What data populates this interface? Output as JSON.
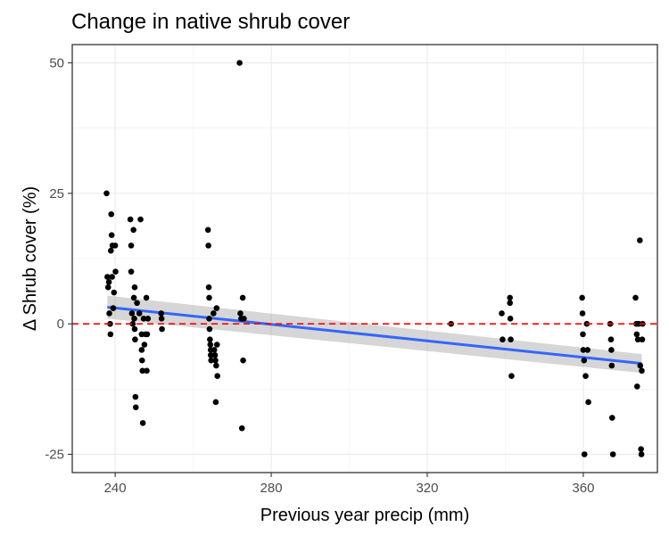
{
  "chart_data": {
    "type": "scatter",
    "title": "Change in native shrub cover",
    "xlabel": "Previous year precip (mm)",
    "ylabel": "Δ Shrub cover (%)",
    "xlim": [
      229,
      379
    ],
    "ylim": [
      -28.5,
      53.5
    ],
    "x_ticks": [
      240,
      280,
      320,
      360
    ],
    "x_tick_labels": [
      "240",
      "280",
      "320",
      "360"
    ],
    "y_ticks": [
      -25,
      0,
      25,
      50
    ],
    "y_tick_labels": [
      "-25",
      "0",
      "25",
      "50"
    ],
    "grid": true,
    "reference_line": {
      "y": 0,
      "style": "dashed",
      "color": "#ff0000"
    },
    "trend": {
      "method": "linear fit with confidence band",
      "x": [
        238,
        375
      ],
      "y": [
        3.2,
        -7.6
      ],
      "ci_lower": [
        1.0,
        -9.4
      ],
      "ci_upper": [
        5.4,
        -5.8
      ],
      "line_color": "#3366ff",
      "band_color": "#999999"
    },
    "point_color": "#000000",
    "points": [
      {
        "x": 237.8,
        "y": 25
      },
      {
        "x": 238.0,
        "y": 9
      },
      {
        "x": 238.2,
        "y": 7
      },
      {
        "x": 238.4,
        "y": 8
      },
      {
        "x": 238.5,
        "y": 2
      },
      {
        "x": 238.7,
        "y": 0
      },
      {
        "x": 238.8,
        "y": -2
      },
      {
        "x": 238.9,
        "y": 14
      },
      {
        "x": 239.0,
        "y": 21
      },
      {
        "x": 239.1,
        "y": 17
      },
      {
        "x": 239.2,
        "y": 9
      },
      {
        "x": 239.3,
        "y": 15
      },
      {
        "x": 239.5,
        "y": 3
      },
      {
        "x": 239.7,
        "y": 6
      },
      {
        "x": 240.0,
        "y": 15
      },
      {
        "x": 240.1,
        "y": 10
      },
      {
        "x": 243.9,
        "y": 20
      },
      {
        "x": 244.1,
        "y": 15
      },
      {
        "x": 244.1,
        "y": 10
      },
      {
        "x": 244.3,
        "y": 2
      },
      {
        "x": 244.5,
        "y": 0
      },
      {
        "x": 244.7,
        "y": 18
      },
      {
        "x": 244.8,
        "y": 5
      },
      {
        "x": 244.9,
        "y": 1
      },
      {
        "x": 245.0,
        "y": -1
      },
      {
        "x": 245.1,
        "y": -3
      },
      {
        "x": 245.0,
        "y": 7
      },
      {
        "x": 245.2,
        "y": -14
      },
      {
        "x": 245.3,
        "y": -16
      },
      {
        "x": 245.6,
        "y": 4
      },
      {
        "x": 246.2,
        "y": 2
      },
      {
        "x": 246.5,
        "y": 20
      },
      {
        "x": 246.8,
        "y": -2
      },
      {
        "x": 246.8,
        "y": -5
      },
      {
        "x": 246.9,
        "y": -7
      },
      {
        "x": 247.0,
        "y": -9
      },
      {
        "x": 247.1,
        "y": -19
      },
      {
        "x": 247.3,
        "y": 1
      },
      {
        "x": 247.5,
        "y": -4
      },
      {
        "x": 247.8,
        "y": -2
      },
      {
        "x": 248.0,
        "y": 5
      },
      {
        "x": 248.1,
        "y": -9
      },
      {
        "x": 248.2,
        "y": -2
      },
      {
        "x": 248.4,
        "y": 1
      },
      {
        "x": 251.8,
        "y": 2
      },
      {
        "x": 251.9,
        "y": 1
      },
      {
        "x": 252.0,
        "y": -1
      },
      {
        "x": 263.8,
        "y": 18
      },
      {
        "x": 263.9,
        "y": 15
      },
      {
        "x": 264.0,
        "y": 7
      },
      {
        "x": 264.1,
        "y": 5
      },
      {
        "x": 264.1,
        "y": 1
      },
      {
        "x": 264.2,
        "y": -1
      },
      {
        "x": 264.3,
        "y": -3
      },
      {
        "x": 264.4,
        "y": -4
      },
      {
        "x": 264.5,
        "y": -5
      },
      {
        "x": 264.5,
        "y": -6
      },
      {
        "x": 264.6,
        "y": -7
      },
      {
        "x": 265.2,
        "y": 2
      },
      {
        "x": 265.4,
        "y": -5
      },
      {
        "x": 265.6,
        "y": -6
      },
      {
        "x": 265.7,
        "y": -7
      },
      {
        "x": 265.9,
        "y": -8
      },
      {
        "x": 266.0,
        "y": 3
      },
      {
        "x": 266.1,
        "y": -4
      },
      {
        "x": 266.2,
        "y": -10
      },
      {
        "x": 265.8,
        "y": -15
      },
      {
        "x": 271.9,
        "y": 50
      },
      {
        "x": 272.1,
        "y": 2
      },
      {
        "x": 272.3,
        "y": 1
      },
      {
        "x": 272.5,
        "y": -20
      },
      {
        "x": 272.7,
        "y": 5
      },
      {
        "x": 272.8,
        "y": -7
      },
      {
        "x": 273.0,
        "y": 1
      },
      {
        "x": 326.1,
        "y": 0
      },
      {
        "x": 339.1,
        "y": 2
      },
      {
        "x": 339.3,
        "y": -3
      },
      {
        "x": 341.2,
        "y": 5
      },
      {
        "x": 341.2,
        "y": 4
      },
      {
        "x": 341.3,
        "y": 1
      },
      {
        "x": 341.4,
        "y": -3
      },
      {
        "x": 341.6,
        "y": -10
      },
      {
        "x": 359.7,
        "y": 5
      },
      {
        "x": 359.8,
        "y": 2
      },
      {
        "x": 359.9,
        "y": -2
      },
      {
        "x": 360.0,
        "y": -5
      },
      {
        "x": 360.2,
        "y": -7
      },
      {
        "x": 360.3,
        "y": -25
      },
      {
        "x": 360.6,
        "y": -10
      },
      {
        "x": 360.9,
        "y": 0
      },
      {
        "x": 361.1,
        "y": -5
      },
      {
        "x": 361.3,
        "y": -15
      },
      {
        "x": 366.9,
        "y": 0
      },
      {
        "x": 367.1,
        "y": -3
      },
      {
        "x": 367.2,
        "y": -5
      },
      {
        "x": 367.3,
        "y": -8
      },
      {
        "x": 367.4,
        "y": -18
      },
      {
        "x": 367.6,
        "y": -25
      },
      {
        "x": 373.4,
        "y": 5
      },
      {
        "x": 373.6,
        "y": 0
      },
      {
        "x": 373.7,
        "y": -2
      },
      {
        "x": 373.8,
        "y": -12
      },
      {
        "x": 374.0,
        "y": -3
      },
      {
        "x": 374.2,
        "y": 0
      },
      {
        "x": 374.5,
        "y": 16
      },
      {
        "x": 374.6,
        "y": -8
      },
      {
        "x": 374.8,
        "y": -24
      },
      {
        "x": 374.9,
        "y": -25
      },
      {
        "x": 375.0,
        "y": -9
      },
      {
        "x": 375.1,
        "y": -3
      },
      {
        "x": 375.2,
        "y": 0
      }
    ]
  }
}
